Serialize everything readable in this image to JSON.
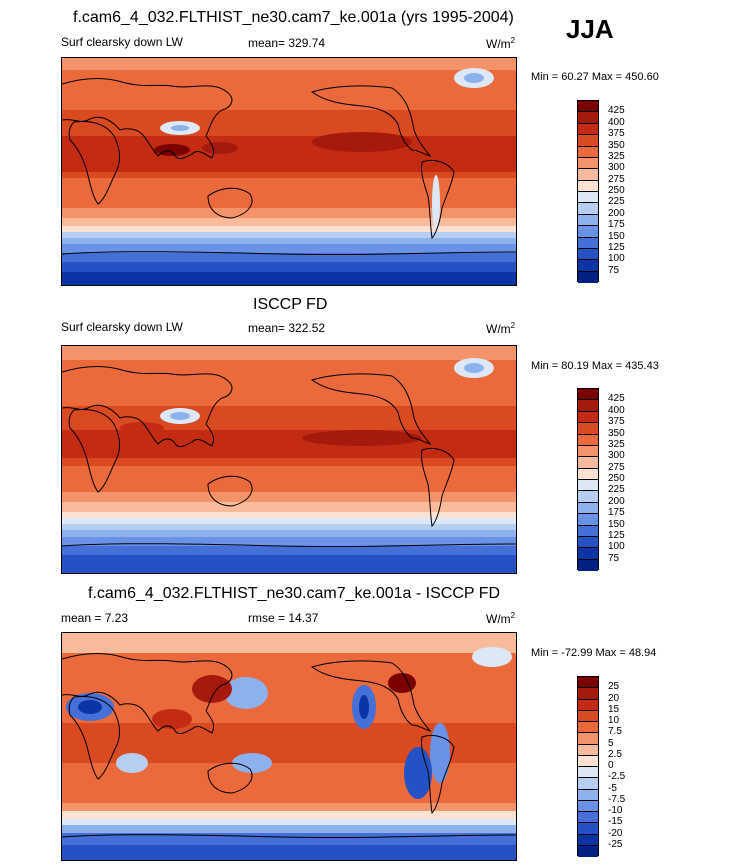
{
  "season_label": "JJA",
  "panels": [
    {
      "title": "f.cam6_4_032.FLTHIST_ne30.cam7_ke.001a (yrs 1995-2004)",
      "left_label": "Surf clearsky down LW",
      "mid_label": "mean= 329.74",
      "units": "W/m",
      "units_sup": "2",
      "minmax": "Min =  60.27 Max = 450.60",
      "colorbar": {
        "labels": [
          "425",
          "400",
          "375",
          "350",
          "325",
          "300",
          "275",
          "250",
          "225",
          "200",
          "175",
          "150",
          "125",
          "100",
          "75"
        ],
        "colors": [
          "#7a0000",
          "#a51a0c",
          "#c32c12",
          "#d94a20",
          "#ea6a3c",
          "#f4936a",
          "#f8bb9c",
          "#fbe2d2",
          "#dce8f6",
          "#b6cff0",
          "#8db1ec",
          "#6a92e6",
          "#4470d8",
          "#2452c4",
          "#0c34a4",
          "#002082"
        ]
      }
    },
    {
      "title": "ISCCP FD",
      "left_label": "Surf clearsky down LW",
      "mid_label": "mean= 322.52",
      "units": "W/m",
      "units_sup": "2",
      "minmax": "Min =  80.19 Max = 435.43",
      "colorbar": {
        "labels": [
          "425",
          "400",
          "375",
          "350",
          "325",
          "300",
          "275",
          "250",
          "225",
          "200",
          "175",
          "150",
          "125",
          "100",
          "75"
        ],
        "colors": [
          "#7a0000",
          "#a51a0c",
          "#c32c12",
          "#d94a20",
          "#ea6a3c",
          "#f4936a",
          "#f8bb9c",
          "#fbe2d2",
          "#dce8f6",
          "#b6cff0",
          "#8db1ec",
          "#6a92e6",
          "#4470d8",
          "#2452c4",
          "#0c34a4",
          "#002082"
        ]
      }
    },
    {
      "title": "f.cam6_4_032.FLTHIST_ne30.cam7_ke.001a - ISCCP FD",
      "left_label": "mean =   7.23",
      "mid_label": "rmse =  14.37",
      "units": "W/m",
      "units_sup": "2",
      "minmax": "Min = -72.99 Max =  48.94",
      "colorbar": {
        "labels": [
          "25",
          "20",
          "15",
          "10",
          "7.5",
          "5",
          "2.5",
          "0",
          "-2.5",
          "-5",
          "-7.5",
          "-10",
          "-15",
          "-20",
          "-25"
        ],
        "colors": [
          "#7a0000",
          "#a51a0c",
          "#c32c12",
          "#d94a20",
          "#ea6a3c",
          "#f4936a",
          "#f8bb9c",
          "#fbe2d2",
          "#dce8f6",
          "#b6cff0",
          "#8db1ec",
          "#6a92e6",
          "#4470d8",
          "#2452c4",
          "#0c34a4",
          "#002082"
        ]
      }
    }
  ]
}
